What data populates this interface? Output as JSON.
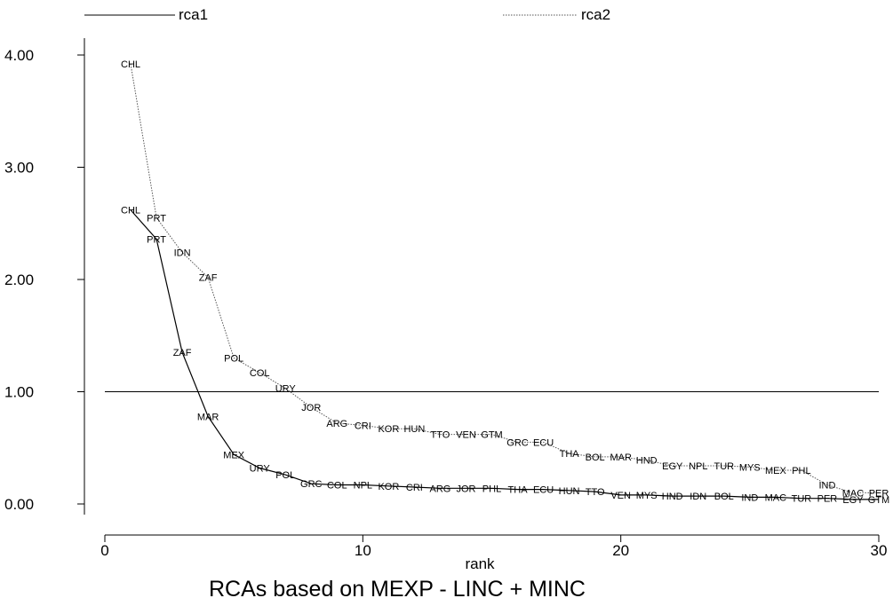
{
  "chart_data": {
    "type": "line",
    "title": "RCAs based on MEXP - LINC + MINC",
    "xlabel": "rank",
    "ylabel": "",
    "xlim": [
      0,
      30
    ],
    "ylim": [
      0,
      4
    ],
    "x_ticks": [
      0,
      10,
      20,
      30
    ],
    "x_tick_labels": [
      "0",
      "10",
      "20",
      "30"
    ],
    "y_ticks": [
      0,
      1,
      2,
      3,
      4
    ],
    "y_tick_labels": [
      "0.00",
      "1.00",
      "2.00",
      "3.00",
      "4.00"
    ],
    "grid": false,
    "legend_position": "top",
    "reference_line": {
      "y": 1.0,
      "x": [
        0,
        30
      ]
    },
    "series": [
      {
        "name": "rca1",
        "style": "solid",
        "color": "#000000",
        "points": [
          {
            "x": 1,
            "y": 2.62,
            "label": "CHL"
          },
          {
            "x": 2,
            "y": 2.36,
            "label": "PRT"
          },
          {
            "x": 3,
            "y": 1.35,
            "label": "ZAF"
          },
          {
            "x": 4,
            "y": 0.78,
            "label": "MAR"
          },
          {
            "x": 5,
            "y": 0.44,
            "label": "MEX"
          },
          {
            "x": 6,
            "y": 0.32,
            "label": "URY"
          },
          {
            "x": 7,
            "y": 0.26,
            "label": "POL"
          },
          {
            "x": 8,
            "y": 0.18,
            "label": "GRC"
          },
          {
            "x": 9,
            "y": 0.17,
            "label": "COL"
          },
          {
            "x": 10,
            "y": 0.17,
            "label": "NPL"
          },
          {
            "x": 11,
            "y": 0.16,
            "label": "KOR"
          },
          {
            "x": 12,
            "y": 0.15,
            "label": "CRI"
          },
          {
            "x": 13,
            "y": 0.14,
            "label": "ARG"
          },
          {
            "x": 14,
            "y": 0.14,
            "label": "JOR"
          },
          {
            "x": 15,
            "y": 0.14,
            "label": "PHL"
          },
          {
            "x": 16,
            "y": 0.13,
            "label": "THA"
          },
          {
            "x": 17,
            "y": 0.13,
            "label": "ECU"
          },
          {
            "x": 18,
            "y": 0.12,
            "label": "HUN"
          },
          {
            "x": 19,
            "y": 0.11,
            "label": "TTO"
          },
          {
            "x": 20,
            "y": 0.08,
            "label": "VEN"
          },
          {
            "x": 21,
            "y": 0.08,
            "label": "MYS"
          },
          {
            "x": 22,
            "y": 0.07,
            "label": "HND"
          },
          {
            "x": 23,
            "y": 0.07,
            "label": "IDN"
          },
          {
            "x": 24,
            "y": 0.07,
            "label": "BOL"
          },
          {
            "x": 25,
            "y": 0.06,
            "label": "IND"
          },
          {
            "x": 26,
            "y": 0.06,
            "label": "MAC"
          },
          {
            "x": 27,
            "y": 0.05,
            "label": "TUR"
          },
          {
            "x": 28,
            "y": 0.05,
            "label": "PER"
          },
          {
            "x": 29,
            "y": 0.04,
            "label": "EGY"
          },
          {
            "x": 30,
            "y": 0.04,
            "label": "GTM"
          }
        ]
      },
      {
        "name": "rca2",
        "style": "dotted",
        "color": "#555555",
        "points": [
          {
            "x": 1,
            "y": 3.92,
            "label": "CHL"
          },
          {
            "x": 2,
            "y": 2.55,
            "label": "PRT"
          },
          {
            "x": 3,
            "y": 2.24,
            "label": "IDN"
          },
          {
            "x": 4,
            "y": 2.02,
            "label": "ZAF"
          },
          {
            "x": 5,
            "y": 1.3,
            "label": "POL"
          },
          {
            "x": 6,
            "y": 1.17,
            "label": "COL"
          },
          {
            "x": 7,
            "y": 1.03,
            "label": "URY"
          },
          {
            "x": 8,
            "y": 0.86,
            "label": "JOR"
          },
          {
            "x": 9,
            "y": 0.72,
            "label": "ARG"
          },
          {
            "x": 10,
            "y": 0.7,
            "label": "CRI"
          },
          {
            "x": 11,
            "y": 0.67,
            "label": "KOR"
          },
          {
            "x": 12,
            "y": 0.67,
            "label": "HUN"
          },
          {
            "x": 13,
            "y": 0.62,
            "label": "TTO"
          },
          {
            "x": 14,
            "y": 0.62,
            "label": "VEN"
          },
          {
            "x": 15,
            "y": 0.62,
            "label": "GTM"
          },
          {
            "x": 16,
            "y": 0.55,
            "label": "GRC"
          },
          {
            "x": 17,
            "y": 0.55,
            "label": "ECU"
          },
          {
            "x": 18,
            "y": 0.45,
            "label": "THA"
          },
          {
            "x": 19,
            "y": 0.42,
            "label": "BOL"
          },
          {
            "x": 20,
            "y": 0.42,
            "label": "MAR"
          },
          {
            "x": 21,
            "y": 0.39,
            "label": "HND"
          },
          {
            "x": 22,
            "y": 0.34,
            "label": "EGY"
          },
          {
            "x": 23,
            "y": 0.34,
            "label": "NPL"
          },
          {
            "x": 24,
            "y": 0.34,
            "label": "TUR"
          },
          {
            "x": 25,
            "y": 0.33,
            "label": "MYS"
          },
          {
            "x": 26,
            "y": 0.3,
            "label": "MEX"
          },
          {
            "x": 27,
            "y": 0.3,
            "label": "PHL"
          },
          {
            "x": 28,
            "y": 0.17,
            "label": "IND"
          },
          {
            "x": 29,
            "y": 0.1,
            "label": "MAC"
          },
          {
            "x": 30,
            "y": 0.1,
            "label": "PER"
          }
        ]
      }
    ]
  }
}
